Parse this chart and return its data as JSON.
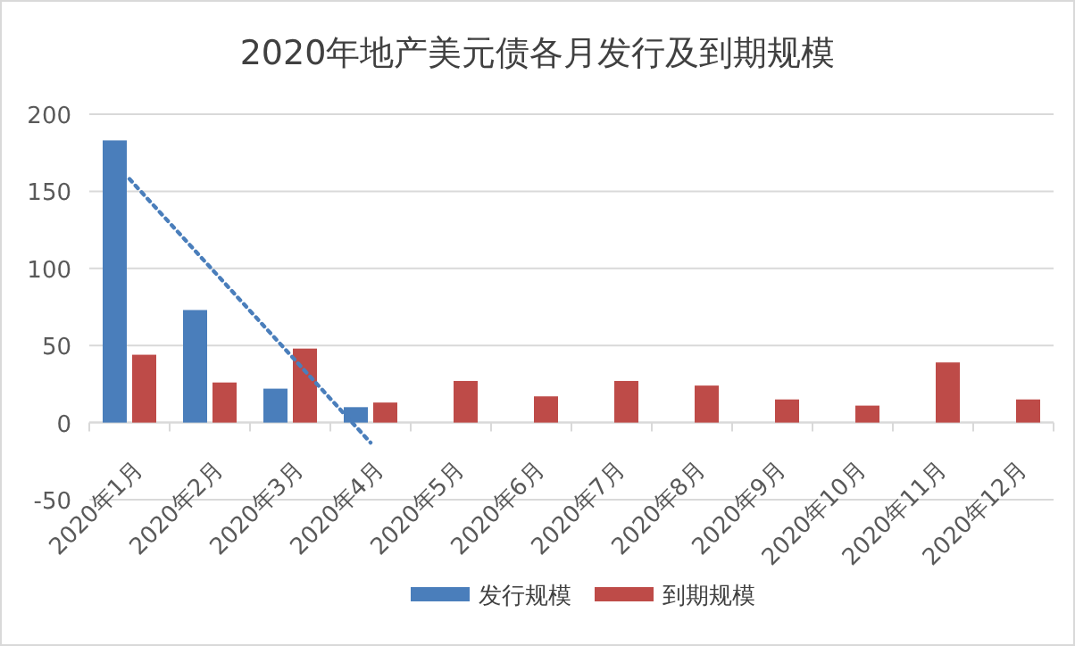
{
  "chart_data": {
    "type": "bar",
    "title": "2020年地产美元债各月发行及到期规模",
    "categories": [
      "2020年1月",
      "2020年2月",
      "2020年3月",
      "2020年4月",
      "2020年5月",
      "2020年6月",
      "2020年7月",
      "2020年8月",
      "2020年9月",
      "2020年10月",
      "2020年11月",
      "2020年12月"
    ],
    "series": [
      {
        "name": "发行规模",
        "color": "#4a7ebb",
        "values": [
          183,
          73,
          22,
          10,
          null,
          null,
          null,
          null,
          null,
          null,
          null,
          null
        ]
      },
      {
        "name": "到期规模",
        "color": "#be4b48",
        "values": [
          44,
          26,
          48,
          13,
          27,
          17,
          27,
          24,
          15,
          11,
          39,
          15
        ]
      },
      {
        "type": "line",
        "color": "#4a7ebb",
        "values": [
          158,
          101,
          44,
          -13,
          null,
          null,
          null,
          null,
          null,
          null,
          null,
          null
        ],
        "line_style": "dotted"
      }
    ],
    "ylim": [
      -50,
      200
    ],
    "yticks": [
      -50,
      0,
      50,
      100,
      150,
      200
    ],
    "grid": "y",
    "legend": "bottom"
  }
}
